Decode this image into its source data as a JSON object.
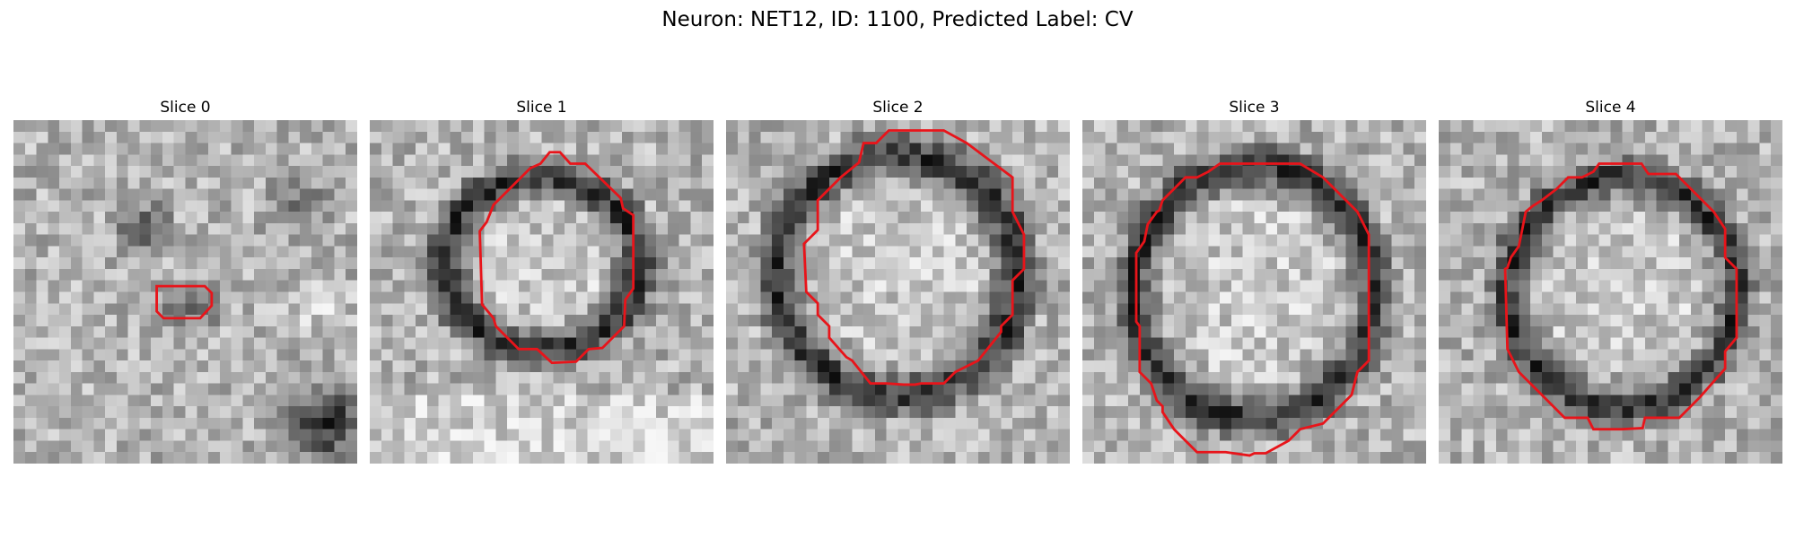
{
  "figure": {
    "title": "Neuron: NET12, ID: 1100, Predicted Label: CV"
  },
  "panels": [
    {
      "title": "Slice 0",
      "seed": 11,
      "kind": "blob"
    },
    {
      "title": "Slice 1",
      "seed": 23,
      "kind": "ring"
    },
    {
      "title": "Slice 2",
      "seed": 37,
      "kind": "ring"
    },
    {
      "title": "Slice 3",
      "seed": 41,
      "kind": "ring"
    },
    {
      "title": "Slice 4",
      "seed": 59,
      "kind": "ring"
    }
  ],
  "colors": {
    "contour": "#e8141a"
  }
}
